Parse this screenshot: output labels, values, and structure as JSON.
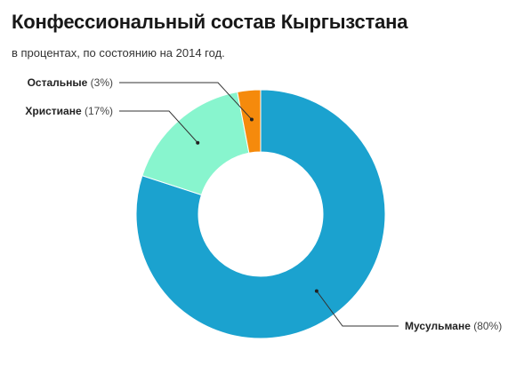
{
  "title": "Конфессиональный состав Кыргызстана",
  "subtitle": "в процентах, по состоянию на 2014 год.",
  "chart_data": {
    "type": "pie",
    "title": "Конфессиональный состав Кыргызстана",
    "subtitle": "в процентах, по состоянию на 2014 год.",
    "donut": true,
    "start": "12 o'clock",
    "direction": "clockwise",
    "slices": [
      {
        "name": "Мусульмане",
        "value": 80,
        "pct_label": "(80%)",
        "color": "#1ba2cf"
      },
      {
        "name": "Христиане",
        "value": 17,
        "pct_label": "(17%)",
        "color": "#88f5ce"
      },
      {
        "name": "Остальные",
        "value": 3,
        "pct_label": "(3%)",
        "color": "#f58a0c"
      }
    ]
  }
}
